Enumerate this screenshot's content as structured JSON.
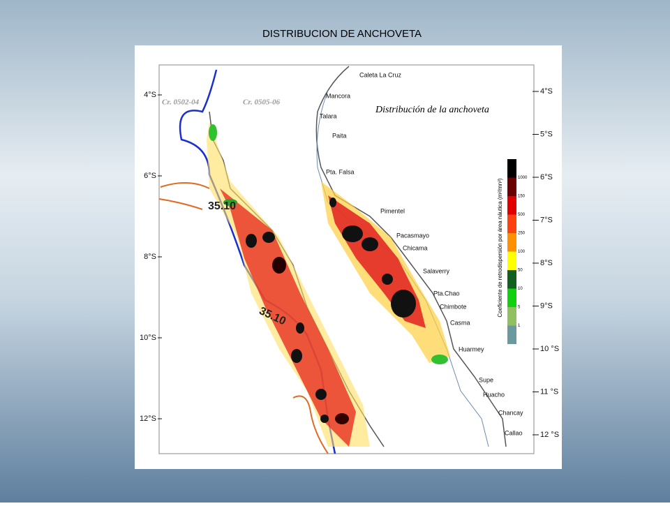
{
  "title": "DISTRIBUCION DE ANCHOVETA",
  "map": {
    "subtitle": "Distribución de la anchoveta",
    "cruises": [
      "Cr. 0502-04",
      "Cr. 0505-06"
    ],
    "left_latitudes": [
      "4°S",
      "6°S",
      "8°S",
      "10°S",
      "12°S"
    ],
    "right_latitudes": [
      "4°S",
      "5°S",
      "6°S",
      "7°S",
      "8°S",
      "9°S",
      "10 °S",
      "11 °S",
      "12 °S"
    ],
    "isoline_labels": [
      "35.10",
      "35.10"
    ],
    "places": [
      "Caleta La Cruz",
      "Mancora",
      "Talara",
      "Paita",
      "Pta. Falsa",
      "Pimentel",
      "Pacasmayo",
      "Chicama",
      "Salaverry",
      "Pta.Chao",
      "Chimbote",
      "Casma",
      "Huarmey",
      "Supe",
      "Huacho",
      "Chancay",
      "Callao"
    ],
    "legend": {
      "title": "Coeficiente de retrodispersión por área náutica (m²/mn²)",
      "labels": [
        "1000",
        "150",
        "500",
        "250",
        "100",
        "50",
        "10",
        "5",
        "1"
      ]
    }
  }
}
